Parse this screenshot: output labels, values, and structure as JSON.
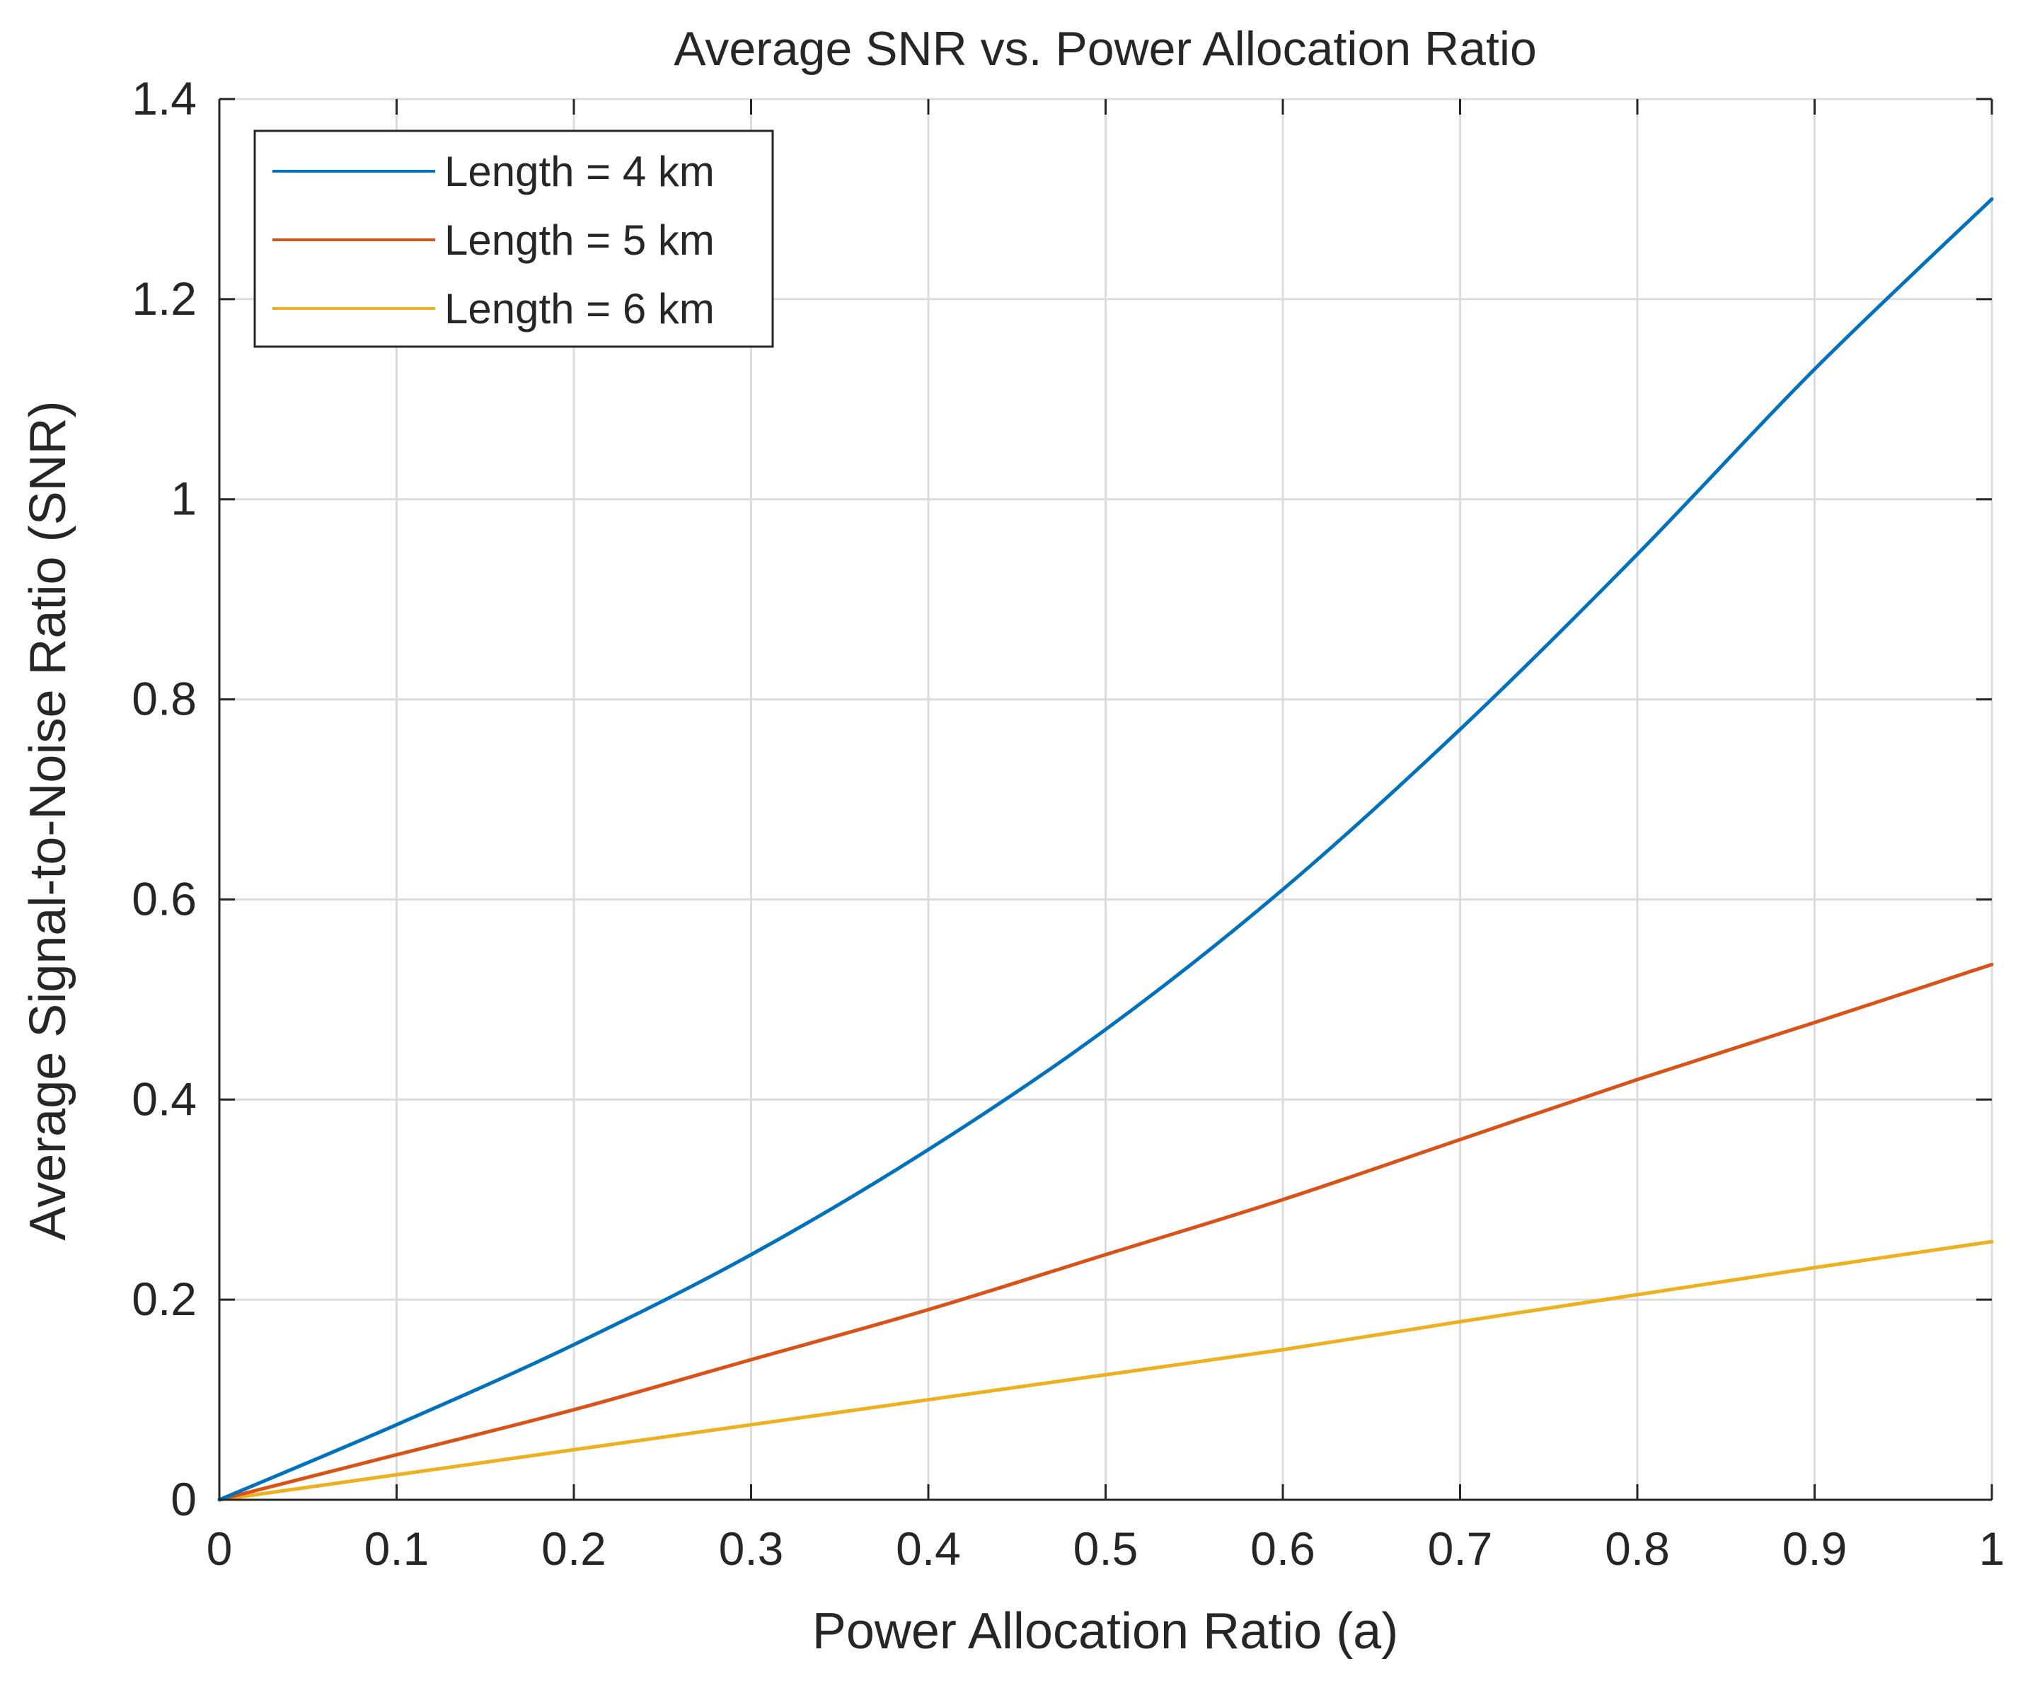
{
  "chart_data": {
    "type": "line",
    "title": "Average SNR vs. Power Allocation Ratio",
    "xlabel": "Power Allocation Ratio (a)",
    "ylabel": "Average Signal-to-Noise Ratio (SNR)",
    "xlim": [
      0,
      1
    ],
    "ylim": [
      0,
      1.4
    ],
    "xticks": [
      0,
      0.1,
      0.2,
      0.3,
      0.4,
      0.5,
      0.6,
      0.7,
      0.8,
      0.9,
      1
    ],
    "xtick_labels": [
      "0",
      "0.1",
      "0.2",
      "0.3",
      "0.4",
      "0.5",
      "0.6",
      "0.7",
      "0.8",
      "0.9",
      "1"
    ],
    "yticks": [
      0,
      0.2,
      0.4,
      0.6,
      0.8,
      1,
      1.2,
      1.4
    ],
    "ytick_labels": [
      "0",
      "0.2",
      "0.4",
      "0.6",
      "0.8",
      "1",
      "1.2",
      "1.4"
    ],
    "grid": true,
    "legend_position": "top-left",
    "x": [
      0,
      0.1,
      0.2,
      0.3,
      0.4,
      0.5,
      0.6,
      0.7,
      0.8,
      0.9,
      1.0
    ],
    "series": [
      {
        "name": "Length = 4 km",
        "color": "#0072BD",
        "values": [
          0,
          0.075,
          0.155,
          0.245,
          0.35,
          0.47,
          0.61,
          0.77,
          0.945,
          1.13,
          1.3
        ]
      },
      {
        "name": "Length = 5 km",
        "color": "#D95319",
        "values": [
          0,
          0.045,
          0.09,
          0.14,
          0.19,
          0.245,
          0.3,
          0.36,
          0.42,
          0.477,
          0.535
        ]
      },
      {
        "name": "Length = 6 km",
        "color": "#EDB120",
        "values": [
          0,
          0.025,
          0.05,
          0.075,
          0.1,
          0.125,
          0.15,
          0.178,
          0.205,
          0.232,
          0.258
        ]
      }
    ]
  }
}
